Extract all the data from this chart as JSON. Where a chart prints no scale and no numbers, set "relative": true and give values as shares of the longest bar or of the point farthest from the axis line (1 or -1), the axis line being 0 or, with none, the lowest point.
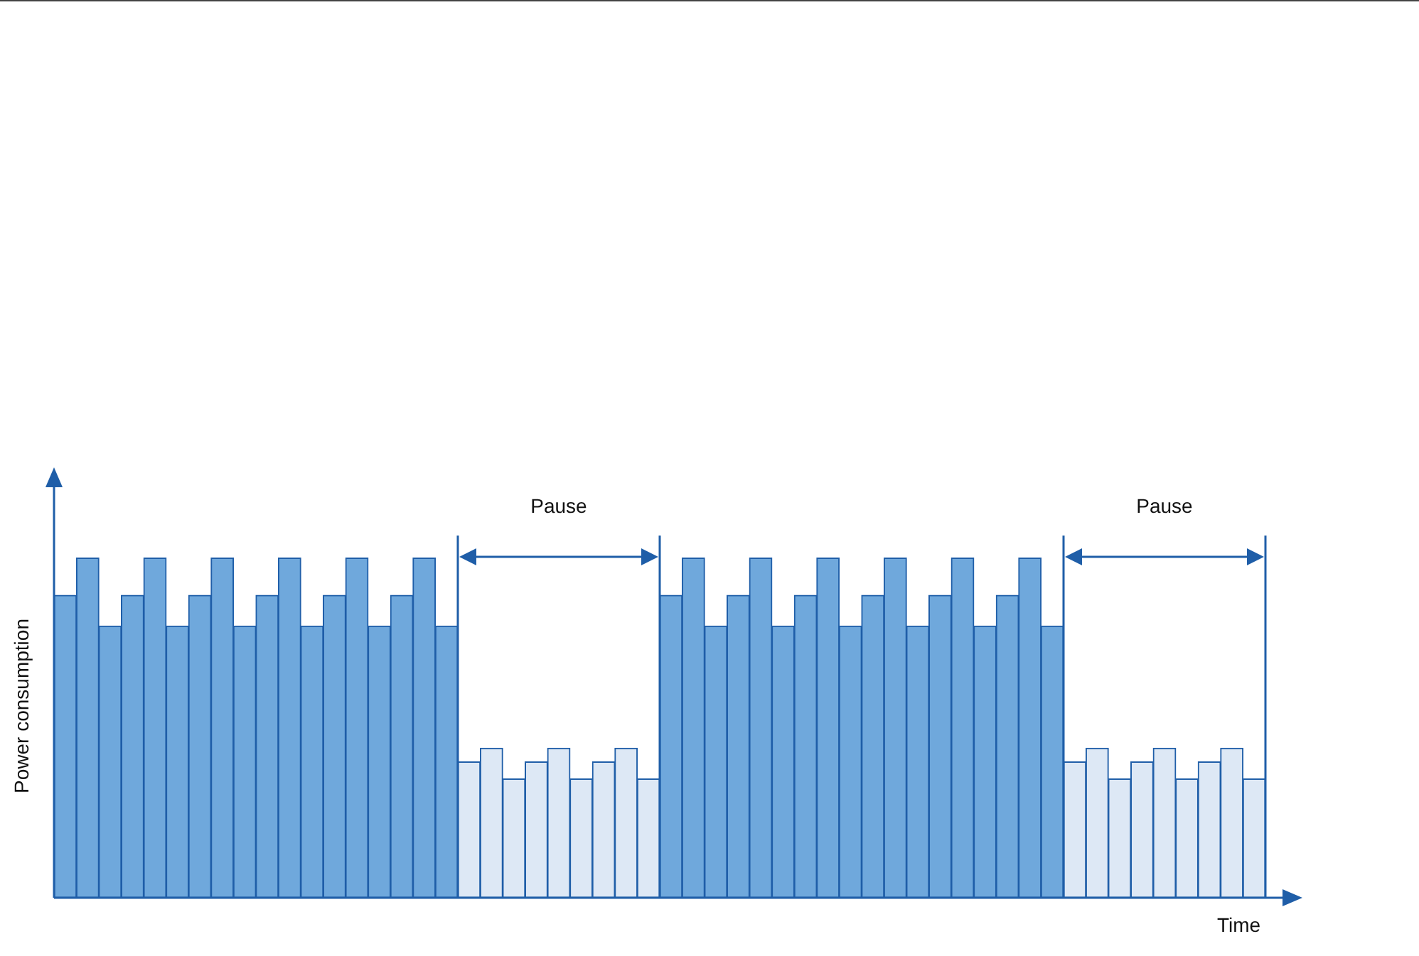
{
  "chart_data": {
    "type": "bar",
    "relative": true,
    "xlabel": "Time",
    "ylabel": "Power consumption",
    "categories": [
      null,
      null,
      null,
      null,
      null,
      null,
      null,
      null,
      null,
      null,
      null,
      null,
      null,
      null,
      null,
      null,
      null,
      null,
      null,
      null,
      null,
      null,
      null,
      null,
      null,
      null,
      null,
      null,
      null,
      null,
      null,
      null,
      null,
      null,
      null,
      null,
      null,
      null,
      null,
      null,
      null,
      null,
      null,
      null,
      null,
      null,
      null,
      null,
      null,
      null,
      null,
      null,
      null,
      null
    ],
    "values": [
      0.89,
      1,
      0.8,
      0.89,
      1,
      0.8,
      0.89,
      1,
      0.8,
      0.89,
      1,
      0.8,
      0.89,
      1,
      0.8,
      0.89,
      1,
      0.8,
      0.4,
      0.44,
      0.35,
      0.4,
      0.44,
      0.35,
      0.4,
      0.44,
      0.35,
      0.89,
      1,
      0.8,
      0.89,
      1,
      0.8,
      0.89,
      1,
      0.8,
      0.89,
      1,
      0.8,
      0.89,
      1,
      0.8,
      0.89,
      1,
      0.8,
      0.4,
      0.44,
      0.35,
      0.4,
      0.44,
      0.35,
      0.4,
      0.44,
      0.35
    ],
    "colors": [
      "#6fa8dc",
      "#6fa8dc",
      "#6fa8dc",
      "#6fa8dc",
      "#6fa8dc",
      "#6fa8dc",
      "#6fa8dc",
      "#6fa8dc",
      "#6fa8dc",
      "#6fa8dc",
      "#6fa8dc",
      "#6fa8dc",
      "#6fa8dc",
      "#6fa8dc",
      "#6fa8dc",
      "#6fa8dc",
      "#6fa8dc",
      "#6fa8dc",
      "#dde8f5",
      "#dde8f5",
      "#dde8f5",
      "#dde8f5",
      "#dde8f5",
      "#dde8f5",
      "#dde8f5",
      "#dde8f5",
      "#dde8f5",
      "#6fa8dc",
      "#6fa8dc",
      "#6fa8dc",
      "#6fa8dc",
      "#6fa8dc",
      "#6fa8dc",
      "#6fa8dc",
      "#6fa8dc",
      "#6fa8dc",
      "#6fa8dc",
      "#6fa8dc",
      "#6fa8dc",
      "#6fa8dc",
      "#6fa8dc",
      "#6fa8dc",
      "#6fa8dc",
      "#6fa8dc",
      "#6fa8dc",
      "#dde8f5",
      "#dde8f5",
      "#dde8f5",
      "#dde8f5",
      "#dde8f5",
      "#dde8f5",
      "#dde8f5",
      "#dde8f5",
      "#dde8f5"
    ],
    "annotations": [
      "Pause",
      "Pause"
    ]
  }
}
